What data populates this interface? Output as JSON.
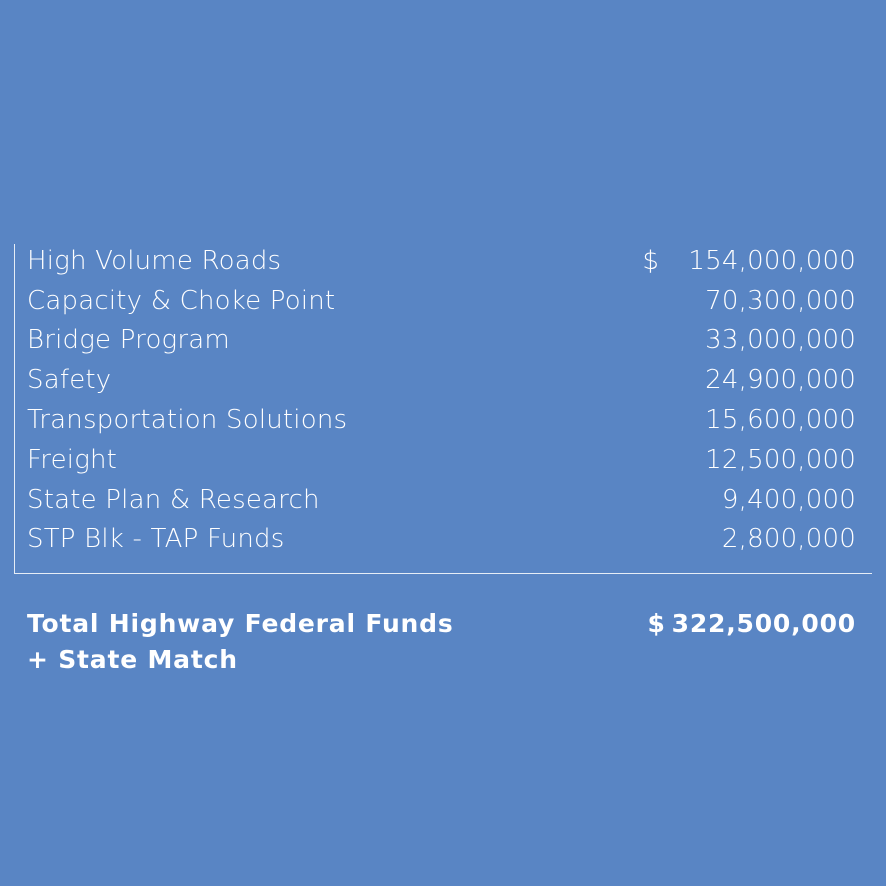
{
  "rows": [
    {
      "label": "High Volume Roads",
      "currency": "$",
      "amount": "154,000,000"
    },
    {
      "label": "Capacity & Choke Point",
      "currency": "",
      "amount": "70,300,000"
    },
    {
      "label": "Bridge Program",
      "currency": "",
      "amount": "33,000,000"
    },
    {
      "label": "Safety",
      "currency": "",
      "amount": "24,900,000"
    },
    {
      "label": "Transportation Solutions",
      "currency": "",
      "amount": "15,600,000"
    },
    {
      "label": "Freight",
      "currency": "",
      "amount": "12,500,000"
    },
    {
      "label": "State Plan & Research",
      "currency": "",
      "amount": "9,400,000"
    },
    {
      "label": "STP Blk - TAP Funds",
      "currency": "",
      "amount": "2,800,000"
    }
  ],
  "total": {
    "label_line1": "Total Highway Federal Funds",
    "label_line2": "+ State Match",
    "currency": "$",
    "amount": "322,500,000"
  },
  "colors": {
    "background": "#5985C4",
    "text": "#FFFFFF"
  }
}
